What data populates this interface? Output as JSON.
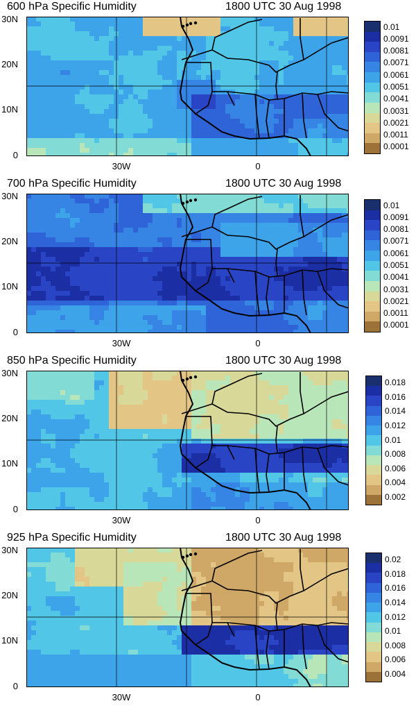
{
  "panels": [
    {
      "title_left": "600 hPa Specific Humidity",
      "title_right": "1800 UTC 30 Aug 1998",
      "legend_labels": [
        "0.01",
        "0.0091",
        "0.0081",
        "0.0071",
        "0.0061",
        "0.0051",
        "0.0041",
        "0.0031",
        "0.0021",
        "0.0011",
        "0.0001"
      ],
      "pattern": "p600"
    },
    {
      "title_left": "700 hPa Specific Humidity",
      "title_right": "1800 UTC 30 Aug 1998",
      "legend_labels": [
        "0.01",
        "0.0091",
        "0.0081",
        "0.0071",
        "0.0061",
        "0.0051",
        "0.0041",
        "0.0031",
        "0.0021",
        "0.0011",
        "0.0001"
      ],
      "pattern": "p700"
    },
    {
      "title_left": "850 hPa Specific Humidity",
      "title_right": "1800 UTC 30 Aug 1998",
      "legend_labels": [
        "0.018",
        "0.016",
        "0.014",
        "0.012",
        "0.01",
        "0.008",
        "0.006",
        "0.004",
        "0.002"
      ],
      "pattern": "p850"
    },
    {
      "title_left": "925 hPa Specific Humidity",
      "title_right": "1800 UTC 30 Aug 1998",
      "legend_labels": [
        "0.02",
        "0.018",
        "0.016",
        "0.014",
        "0.012",
        "0.01",
        "0.008",
        "0.006",
        "0.004"
      ],
      "pattern": "p925"
    }
  ],
  "y_ticks": [
    "30N",
    "20N",
    "10N",
    "0"
  ],
  "x_ticks": [
    "30W",
    "0"
  ],
  "colors": {
    "ramp": [
      "#1a2f6e",
      "#1c2ea3",
      "#2a44c6",
      "#2f63d8",
      "#3684e3",
      "#3ea4ea",
      "#52c6e6",
      "#82dcd5",
      "#b8e6b8",
      "#d8d898",
      "#e3c586",
      "#cfa867",
      "#9c7238"
    ],
    "coast": "#000000"
  }
}
